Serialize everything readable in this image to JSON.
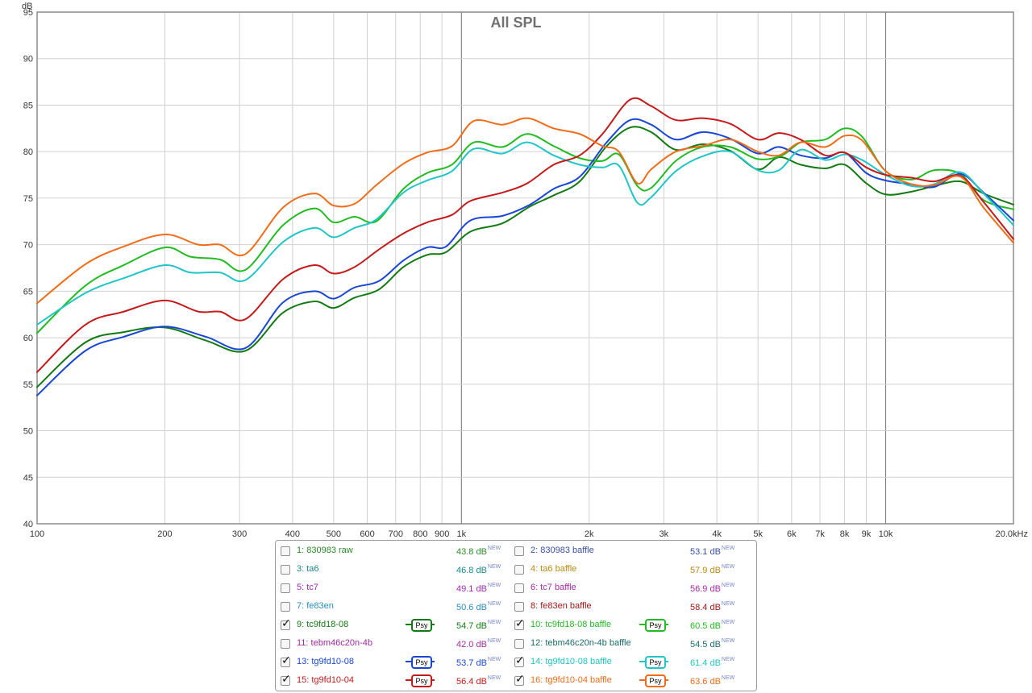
{
  "chart_data": {
    "type": "line",
    "title": "All SPL",
    "ylabel": "dB",
    "x_scale": "log",
    "xlim": [
      100,
      20000
    ],
    "ylim": [
      40,
      95
    ],
    "grid": true,
    "x_ticks": [
      {
        "v": 100,
        "label": "100"
      },
      {
        "v": 200,
        "label": "200"
      },
      {
        "v": 300,
        "label": "300"
      },
      {
        "v": 400,
        "label": "400"
      },
      {
        "v": 500,
        "label": "500"
      },
      {
        "v": 600,
        "label": "600"
      },
      {
        "v": 700,
        "label": "700"
      },
      {
        "v": 800,
        "label": "800"
      },
      {
        "v": 900,
        "label": "900"
      },
      {
        "v": 1000,
        "label": "1k"
      },
      {
        "v": 2000,
        "label": "2k"
      },
      {
        "v": 3000,
        "label": "3k"
      },
      {
        "v": 4000,
        "label": "4k"
      },
      {
        "v": 5000,
        "label": "5k"
      },
      {
        "v": 6000,
        "label": "6k"
      },
      {
        "v": 7000,
        "label": "7k"
      },
      {
        "v": 8000,
        "label": "8k"
      },
      {
        "v": 9000,
        "label": "9k"
      },
      {
        "v": 10000,
        "label": "10k"
      },
      {
        "v": 20000,
        "label": "20.0kHz"
      }
    ],
    "y_ticks": [
      40,
      45,
      50,
      55,
      60,
      65,
      70,
      75,
      80,
      85,
      90,
      95
    ],
    "series": [
      {
        "name": "9: tc9fd18-08",
        "color": "#137a13",
        "points": [
          [
            100,
            54.7
          ],
          [
            130,
            59.5
          ],
          [
            160,
            60.6
          ],
          [
            200,
            61.1
          ],
          [
            250,
            59.7
          ],
          [
            310,
            58.6
          ],
          [
            380,
            62.7
          ],
          [
            450,
            63.9
          ],
          [
            500,
            63.2
          ],
          [
            560,
            64.3
          ],
          [
            640,
            65.2
          ],
          [
            730,
            67.6
          ],
          [
            830,
            68.9
          ],
          [
            920,
            69.2
          ],
          [
            1050,
            71.4
          ],
          [
            1250,
            72.3
          ],
          [
            1450,
            74.1
          ],
          [
            1650,
            75.3
          ],
          [
            1900,
            76.8
          ],
          [
            2200,
            80.6
          ],
          [
            2500,
            82.6
          ],
          [
            2800,
            82.1
          ],
          [
            3200,
            80.2
          ],
          [
            3700,
            80.8
          ],
          [
            4300,
            80.1
          ],
          [
            5000,
            78.1
          ],
          [
            5600,
            79.4
          ],
          [
            6300,
            78.6
          ],
          [
            7200,
            78.2
          ],
          [
            8000,
            78.6
          ],
          [
            9000,
            76.6
          ],
          [
            10000,
            75.4
          ],
          [
            11500,
            75.7
          ],
          [
            13000,
            76.3
          ],
          [
            15000,
            76.8
          ],
          [
            17000,
            75.5
          ],
          [
            20000,
            74.3
          ]
        ]
      },
      {
        "name": "10: tc9fd18-08 baffle",
        "color": "#22bb22",
        "points": [
          [
            100,
            60.5
          ],
          [
            130,
            65.6
          ],
          [
            160,
            67.8
          ],
          [
            200,
            69.7
          ],
          [
            230,
            68.7
          ],
          [
            270,
            68.4
          ],
          [
            310,
            67.3
          ],
          [
            380,
            72.1
          ],
          [
            450,
            73.9
          ],
          [
            500,
            72.4
          ],
          [
            560,
            73.0
          ],
          [
            630,
            72.5
          ],
          [
            730,
            76.0
          ],
          [
            830,
            77.7
          ],
          [
            950,
            78.6
          ],
          [
            1070,
            81.0
          ],
          [
            1250,
            80.5
          ],
          [
            1430,
            81.9
          ],
          [
            1650,
            80.6
          ],
          [
            1900,
            79.3
          ],
          [
            2150,
            79.0
          ],
          [
            2350,
            79.7
          ],
          [
            2600,
            76.3
          ],
          [
            2800,
            76.1
          ],
          [
            3200,
            79.0
          ],
          [
            3700,
            80.5
          ],
          [
            4300,
            80.5
          ],
          [
            5000,
            79.2
          ],
          [
            5700,
            79.6
          ],
          [
            6300,
            81.0
          ],
          [
            7200,
            81.3
          ],
          [
            8000,
            82.5
          ],
          [
            8800,
            81.6
          ],
          [
            10000,
            77.9
          ],
          [
            11500,
            77.0
          ],
          [
            13000,
            78.0
          ],
          [
            15000,
            77.6
          ],
          [
            17000,
            74.8
          ],
          [
            20000,
            73.8
          ]
        ]
      },
      {
        "name": "13: tg9fd10-08",
        "color": "#1a46d4",
        "points": [
          [
            100,
            53.8
          ],
          [
            130,
            58.6
          ],
          [
            160,
            60.1
          ],
          [
            200,
            61.2
          ],
          [
            250,
            60.1
          ],
          [
            310,
            58.9
          ],
          [
            380,
            63.8
          ],
          [
            450,
            65.0
          ],
          [
            500,
            64.2
          ],
          [
            560,
            65.4
          ],
          [
            640,
            66.1
          ],
          [
            730,
            68.3
          ],
          [
            830,
            69.7
          ],
          [
            920,
            69.8
          ],
          [
            1050,
            72.6
          ],
          [
            1250,
            73.1
          ],
          [
            1450,
            74.3
          ],
          [
            1650,
            76.0
          ],
          [
            1900,
            77.3
          ],
          [
            2200,
            81.0
          ],
          [
            2500,
            83.4
          ],
          [
            2800,
            82.9
          ],
          [
            3200,
            81.3
          ],
          [
            3700,
            82.1
          ],
          [
            4300,
            81.4
          ],
          [
            5000,
            79.8
          ],
          [
            5600,
            80.5
          ],
          [
            6300,
            79.6
          ],
          [
            7200,
            79.3
          ],
          [
            8000,
            79.9
          ],
          [
            9000,
            77.7
          ],
          [
            10000,
            76.9
          ],
          [
            11500,
            76.5
          ],
          [
            13000,
            76.2
          ],
          [
            15000,
            77.6
          ],
          [
            17000,
            75.6
          ],
          [
            20000,
            72.6
          ]
        ]
      },
      {
        "name": "14: tg9fd10-08 baffle",
        "color": "#22c5c5",
        "points": [
          [
            100,
            61.4
          ],
          [
            130,
            64.8
          ],
          [
            160,
            66.4
          ],
          [
            200,
            67.8
          ],
          [
            230,
            67.0
          ],
          [
            270,
            67.0
          ],
          [
            310,
            66.2
          ],
          [
            380,
            70.3
          ],
          [
            450,
            71.8
          ],
          [
            500,
            70.8
          ],
          [
            560,
            71.8
          ],
          [
            630,
            72.7
          ],
          [
            730,
            75.6
          ],
          [
            830,
            76.9
          ],
          [
            950,
            77.9
          ],
          [
            1070,
            80.3
          ],
          [
            1250,
            79.8
          ],
          [
            1430,
            81.0
          ],
          [
            1650,
            79.6
          ],
          [
            1900,
            78.6
          ],
          [
            2150,
            78.3
          ],
          [
            2350,
            78.5
          ],
          [
            2600,
            74.5
          ],
          [
            2800,
            75.1
          ],
          [
            3200,
            77.9
          ],
          [
            3700,
            79.5
          ],
          [
            4300,
            80.0
          ],
          [
            5000,
            78.0
          ],
          [
            5600,
            78.0
          ],
          [
            6300,
            80.2
          ],
          [
            7200,
            79.1
          ],
          [
            8000,
            79.7
          ],
          [
            8800,
            79.1
          ],
          [
            10000,
            77.5
          ],
          [
            11500,
            76.3
          ],
          [
            13000,
            76.5
          ],
          [
            15000,
            77.8
          ],
          [
            17000,
            75.5
          ],
          [
            20000,
            72.1
          ]
        ]
      },
      {
        "name": "15: tg9fd10-04",
        "color": "#c41a1a",
        "points": [
          [
            100,
            56.3
          ],
          [
            130,
            61.4
          ],
          [
            160,
            62.8
          ],
          [
            200,
            64.0
          ],
          [
            240,
            62.8
          ],
          [
            270,
            62.8
          ],
          [
            310,
            62.0
          ],
          [
            380,
            66.3
          ],
          [
            450,
            67.8
          ],
          [
            500,
            66.9
          ],
          [
            560,
            67.6
          ],
          [
            640,
            69.5
          ],
          [
            730,
            71.2
          ],
          [
            830,
            72.4
          ],
          [
            950,
            73.2
          ],
          [
            1050,
            74.7
          ],
          [
            1250,
            75.6
          ],
          [
            1430,
            76.6
          ],
          [
            1650,
            78.6
          ],
          [
            1900,
            79.6
          ],
          [
            2150,
            81.9
          ],
          [
            2500,
            85.6
          ],
          [
            2800,
            84.9
          ],
          [
            3200,
            83.4
          ],
          [
            3700,
            83.6
          ],
          [
            4300,
            83.0
          ],
          [
            5000,
            81.3
          ],
          [
            5600,
            82.0
          ],
          [
            6300,
            81.3
          ],
          [
            7200,
            79.6
          ],
          [
            8000,
            79.9
          ],
          [
            9000,
            78.3
          ],
          [
            10000,
            77.5
          ],
          [
            11500,
            77.2
          ],
          [
            13000,
            76.8
          ],
          [
            15000,
            77.4
          ],
          [
            17000,
            74.6
          ],
          [
            20000,
            70.6
          ]
        ]
      },
      {
        "name": "16: tg9fd10-04 baffle",
        "color": "#ef6c18",
        "points": [
          [
            100,
            63.7
          ],
          [
            130,
            67.9
          ],
          [
            160,
            69.8
          ],
          [
            200,
            71.1
          ],
          [
            240,
            70.0
          ],
          [
            270,
            70.0
          ],
          [
            310,
            69.0
          ],
          [
            380,
            74.0
          ],
          [
            450,
            75.5
          ],
          [
            500,
            74.2
          ],
          [
            560,
            74.4
          ],
          [
            630,
            76.4
          ],
          [
            730,
            78.7
          ],
          [
            830,
            79.9
          ],
          [
            950,
            80.6
          ],
          [
            1070,
            83.3
          ],
          [
            1250,
            82.9
          ],
          [
            1430,
            83.6
          ],
          [
            1650,
            82.5
          ],
          [
            1900,
            81.9
          ],
          [
            2150,
            80.6
          ],
          [
            2350,
            80.0
          ],
          [
            2600,
            76.6
          ],
          [
            2800,
            78.1
          ],
          [
            3200,
            80.0
          ],
          [
            3700,
            80.6
          ],
          [
            4300,
            81.3
          ],
          [
            5000,
            80.0
          ],
          [
            5600,
            79.6
          ],
          [
            6300,
            81.0
          ],
          [
            7200,
            80.5
          ],
          [
            8000,
            81.7
          ],
          [
            8800,
            81.2
          ],
          [
            10000,
            77.9
          ],
          [
            11500,
            76.5
          ],
          [
            13000,
            76.4
          ],
          [
            15000,
            77.3
          ],
          [
            17000,
            74.0
          ],
          [
            20000,
            70.2
          ]
        ]
      }
    ]
  },
  "legend": {
    "items": [
      {
        "label": "1: 830983 raw",
        "value": "43.8 dB",
        "checked": false,
        "psy": false,
        "color": "#2a8a2a"
      },
      {
        "label": "2: 830983 baffle",
        "value": "53.1 dB",
        "checked": false,
        "psy": false,
        "color": "#3a4ea8"
      },
      {
        "label": "3: ta6",
        "value": "46.8 dB",
        "checked": false,
        "psy": false,
        "color": "#188888"
      },
      {
        "label": "4: ta6 baffle",
        "value": "57.9 dB",
        "checked": false,
        "psy": false,
        "color": "#b88a10"
      },
      {
        "label": "5: tc7",
        "value": "49.1 dB",
        "checked": false,
        "psy": false,
        "color": "#9a2ab0"
      },
      {
        "label": "6: tc7 baffle",
        "value": "56.9 dB",
        "checked": false,
        "psy": false,
        "color": "#a828a8"
      },
      {
        "label": "7: fe83en",
        "value": "50.6 dB",
        "checked": false,
        "psy": false,
        "color": "#2a8cc0"
      },
      {
        "label": "8: fe83en baffle",
        "value": "58.4 dB",
        "checked": false,
        "psy": false,
        "color": "#a01818"
      },
      {
        "label": "9: tc9fd18-08",
        "value": "54.7 dB",
        "checked": true,
        "psy": true,
        "color": "#137a13"
      },
      {
        "label": "10: tc9fd18-08 baffle",
        "value": "60.5 dB",
        "checked": true,
        "psy": true,
        "color": "#22bb22"
      },
      {
        "label": "11: tebm46c20n-4b",
        "value": "42.0 dB",
        "checked": false,
        "psy": false,
        "color": "#a02aa0"
      },
      {
        "label": "12: tebm46c20n-4b baffle",
        "value": "54.5 dB",
        "checked": false,
        "psy": false,
        "color": "#186a6a"
      },
      {
        "label": "13: tg9fd10-08",
        "value": "53.7 dB",
        "checked": true,
        "psy": true,
        "color": "#1a46d4"
      },
      {
        "label": "14: tg9fd10-08 baffle",
        "value": "61.4 dB",
        "checked": true,
        "psy": true,
        "color": "#22c5c5"
      },
      {
        "label": "15: tg9fd10-04",
        "value": "56.4 dB",
        "checked": true,
        "psy": true,
        "color": "#c41a1a"
      },
      {
        "label": "16: tg9fd10-04 baffle",
        "value": "63.6 dB",
        "checked": true,
        "psy": true,
        "color": "#ef6c18"
      }
    ],
    "new_badge": "NEW",
    "psy_label": "Psy",
    "check_glyph": "✓"
  }
}
